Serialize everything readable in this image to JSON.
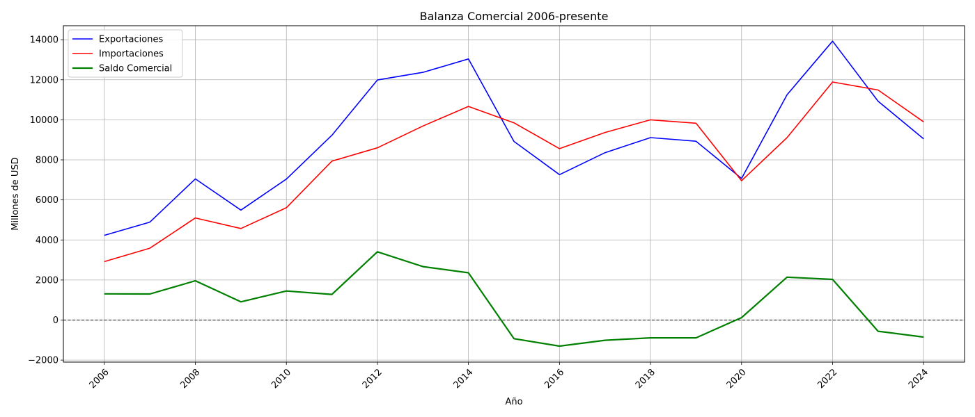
{
  "chart_data": {
    "type": "line",
    "title": "Balanza Comercial 2006-presente",
    "xlabel": "Año",
    "ylabel": "Millones de USD",
    "x": [
      2006,
      2007,
      2008,
      2009,
      2010,
      2011,
      2012,
      2013,
      2014,
      2015,
      2016,
      2017,
      2018,
      2019,
      2020,
      2021,
      2022,
      2023,
      2024
    ],
    "xlim": [
      2005.1,
      2024.9
    ],
    "ylim": [
      -2100,
      14700
    ],
    "x_ticks": [
      "2006",
      "2008",
      "2010",
      "2012",
      "2014",
      "2016",
      "2018",
      "2020",
      "2022",
      "2024"
    ],
    "y_ticks": [
      "−2000",
      "0",
      "2000",
      "4000",
      "6000",
      "8000",
      "10000",
      "12000",
      "14000"
    ],
    "x_tick_values": [
      2006,
      2008,
      2010,
      2012,
      2014,
      2016,
      2018,
      2020,
      2022,
      2024
    ],
    "y_tick_values": [
      -2000,
      0,
      2000,
      4000,
      6000,
      8000,
      10000,
      12000,
      14000
    ],
    "grid": true,
    "legend_position": "top-left",
    "reference_line": {
      "y": 0,
      "style": "dashed",
      "color": "#000000"
    },
    "series": [
      {
        "name": "Exportaciones",
        "color": "#0000ff",
        "values": [
          4230,
          4890,
          7050,
          5490,
          7040,
          9230,
          11990,
          12370,
          13040,
          8920,
          7260,
          8360,
          9110,
          8930,
          7070,
          11250,
          13930,
          10930,
          9050
        ]
      },
      {
        "name": "Importaciones",
        "color": "#ff0000",
        "values": [
          2920,
          3590,
          5100,
          4570,
          5610,
          7940,
          8600,
          9690,
          10670,
          9850,
          8560,
          9370,
          10000,
          9830,
          6960,
          9110,
          11890,
          11490,
          9900
        ]
      },
      {
        "name": "Saldo Comercial",
        "color": "#008000",
        "values": [
          1310,
          1300,
          1960,
          910,
          1450,
          1280,
          3410,
          2670,
          2360,
          -930,
          -1300,
          -1010,
          -890,
          -890,
          120,
          2140,
          2030,
          -560,
          -850
        ]
      }
    ]
  }
}
